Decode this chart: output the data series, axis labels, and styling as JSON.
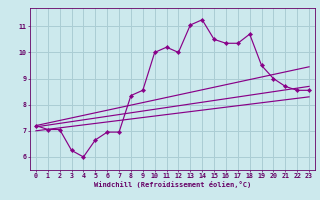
{
  "xlabel": "Windchill (Refroidissement éolien,°C)",
  "background_color": "#cce9ed",
  "grid_color": "#aacdd4",
  "line_color": "#880088",
  "text_color": "#660066",
  "xlim": [
    -0.5,
    23.5
  ],
  "ylim": [
    5.5,
    11.7
  ],
  "xticks": [
    0,
    1,
    2,
    3,
    4,
    5,
    6,
    7,
    8,
    9,
    10,
    11,
    12,
    13,
    14,
    15,
    16,
    17,
    18,
    19,
    20,
    21,
    22,
    23
  ],
  "yticks": [
    6,
    7,
    8,
    9,
    10,
    11
  ],
  "main_x": [
    0,
    1,
    2,
    3,
    4,
    5,
    6,
    7,
    8,
    9,
    10,
    11,
    12,
    13,
    14,
    15,
    16,
    17,
    18,
    19,
    20,
    21,
    22,
    23
  ],
  "main_y": [
    7.2,
    7.05,
    7.05,
    6.25,
    6.0,
    6.65,
    6.95,
    6.95,
    8.35,
    8.55,
    10.0,
    10.2,
    10.0,
    11.05,
    11.25,
    10.5,
    10.35,
    10.35,
    10.7,
    9.5,
    9.0,
    8.7,
    8.55,
    8.55
  ],
  "line1_x": [
    0,
    23
  ],
  "line1_y": [
    7.2,
    9.45
  ],
  "line2_x": [
    0,
    23
  ],
  "line2_y": [
    7.15,
    8.7
  ],
  "line3_x": [
    0,
    23
  ],
  "line3_y": [
    7.0,
    8.3
  ]
}
